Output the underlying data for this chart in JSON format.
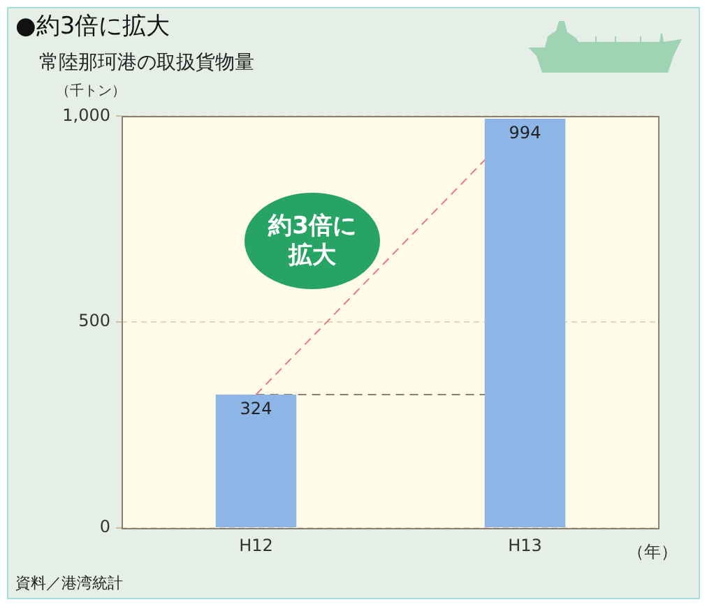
{
  "chart_data": {
    "type": "bar",
    "title": "●約3倍に拡大",
    "subtitle": "常陸那珂港の取扱貨物量",
    "ylabel": "（千トン）",
    "xlabel": "（年）",
    "categories": [
      "H12",
      "H13"
    ],
    "series": [
      {
        "color": "#8db6e6",
        "values": [
          324,
          994
        ],
        "value_labels": [
          "324",
          "994"
        ]
      },
      {
        "type": "line",
        "color": "#e87a7a",
        "values": [
          324,
          994
        ],
        "line_style": "dashed"
      }
    ],
    "ref_lines": [
      {
        "axis": "y",
        "value": 324,
        "color": "#8a7f6e",
        "line_style": "dashed"
      }
    ],
    "ylim": [
      0,
      1000
    ],
    "yticks": [
      0,
      500,
      {
        "value": 1000,
        "label": "1,000"
      }
    ],
    "grid": "y",
    "annotations": [
      "約3倍に拡大",
      "資料／港湾統計"
    ]
  }
}
